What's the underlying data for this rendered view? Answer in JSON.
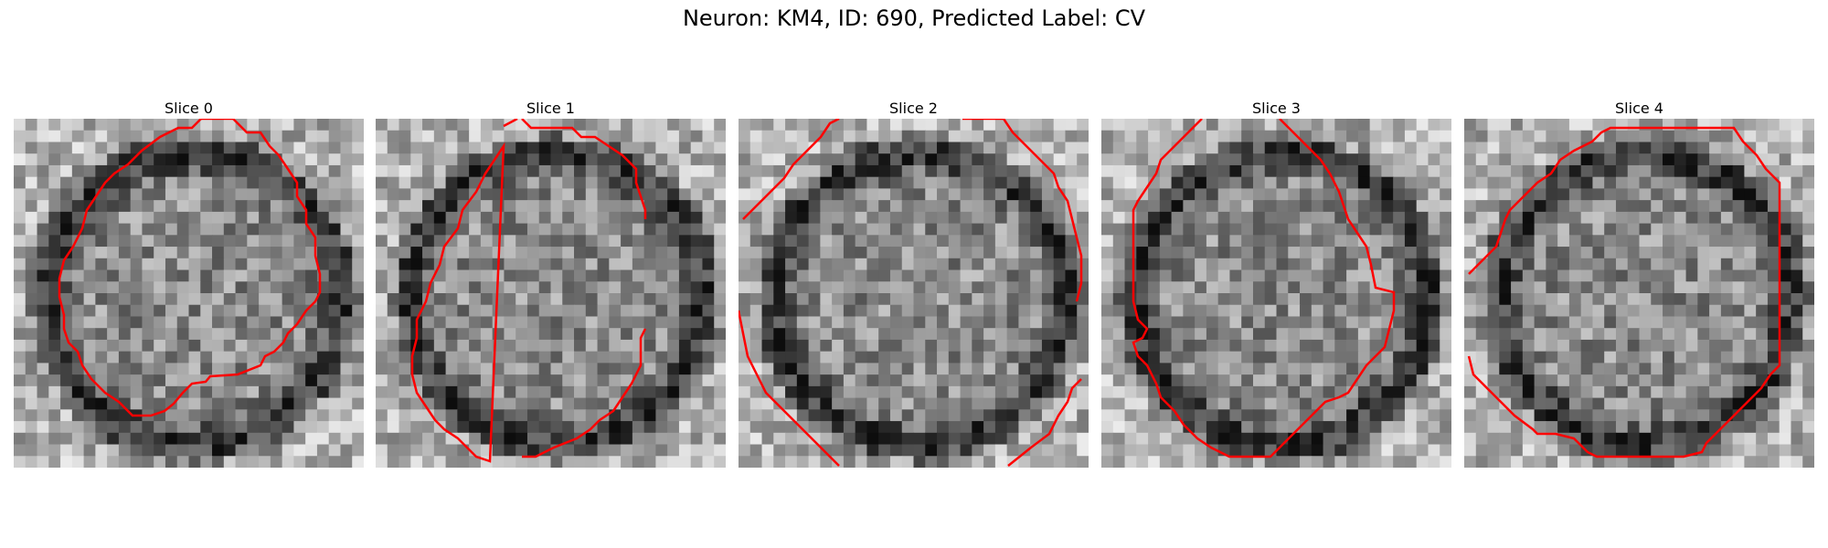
{
  "figure": {
    "title": "Neuron: KM4, ID: 690, Predicted Label: CV"
  },
  "panels": [
    {
      "title": "Slice 0"
    },
    {
      "title": "Slice 1"
    },
    {
      "title": "Slice 2"
    },
    {
      "title": "Slice 3"
    },
    {
      "title": "Slice 4"
    }
  ],
  "colors": {
    "contour": "#ff0000",
    "colormap": "grayscale"
  }
}
